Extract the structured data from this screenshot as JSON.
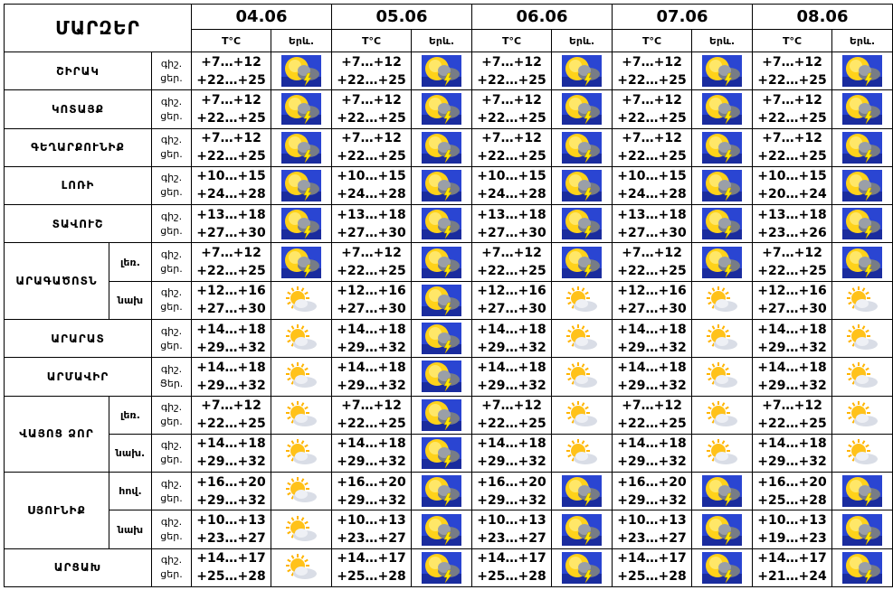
{
  "header": {
    "title": "ՄԱՐԶԵՐ",
    "temp_label": "T°C",
    "weather_label": "Երև."
  },
  "dates": [
    "04.06",
    "05.06",
    "06.06",
    "07.06",
    "08.06"
  ],
  "labels": {
    "night": "գիշ.",
    "day": "ցեր.",
    "day_alt": "Ցեր."
  },
  "regions": [
    {
      "name": "ՇԻՐԱԿ",
      "rows": [
        {
          "sub": "",
          "day_label": "ցեր.",
          "days": [
            {
              "night": "+7…+12",
              "day": "+22…+25",
              "icon": "thunderstorm-icon"
            },
            {
              "night": "+7…+12",
              "day": "+22…+25",
              "icon": "thunderstorm-icon"
            },
            {
              "night": "+7…+12",
              "day": "+22…+25",
              "icon": "thunderstorm-icon"
            },
            {
              "night": "+7…+12",
              "day": "+22…+25",
              "icon": "thunderstorm-icon"
            },
            {
              "night": "+7…+12",
              "day": "+22…+25",
              "icon": "thunderstorm-icon"
            }
          ]
        }
      ]
    },
    {
      "name": "ԿՈՏԱՅՔ",
      "rows": [
        {
          "sub": "",
          "day_label": "ցեր.",
          "days": [
            {
              "night": "+7…+12",
              "day": "+22…+25",
              "icon": "thunderstorm-icon"
            },
            {
              "night": "+7…+12",
              "day": "+22…+25",
              "icon": "thunderstorm-icon"
            },
            {
              "night": "+7…+12",
              "day": "+22…+25",
              "icon": "thunderstorm-icon"
            },
            {
              "night": "+7…+12",
              "day": "+22…+25",
              "icon": "thunderstorm-icon"
            },
            {
              "night": "+7…+12",
              "day": "+22…+25",
              "icon": "thunderstorm-icon"
            }
          ]
        }
      ]
    },
    {
      "name": "ԳԵՂԱՐՔՈՒՆԻՔ",
      "rows": [
        {
          "sub": "",
          "day_label": "ցեր.",
          "days": [
            {
              "night": "+7…+12",
              "day": "+22…+25",
              "icon": "thunderstorm-icon"
            },
            {
              "night": "+7…+12",
              "day": "+22…+25",
              "icon": "thunderstorm-icon"
            },
            {
              "night": "+7…+12",
              "day": "+22…+25",
              "icon": "thunderstorm-icon"
            },
            {
              "night": "+7…+12",
              "day": "+22…+25",
              "icon": "thunderstorm-icon"
            },
            {
              "night": "+7…+12",
              "day": "+22…+25",
              "icon": "thunderstorm-icon"
            }
          ]
        }
      ]
    },
    {
      "name": "ԼՈՌԻ",
      "rows": [
        {
          "sub": "",
          "day_label": "ցեր.",
          "days": [
            {
              "night": "+10…+15",
              "day": "+24…+28",
              "icon": "thunderstorm-icon"
            },
            {
              "night": "+10…+15",
              "day": "+24…+28",
              "icon": "thunderstorm-icon"
            },
            {
              "night": "+10…+15",
              "day": "+24…+28",
              "icon": "thunderstorm-icon"
            },
            {
              "night": "+10…+15",
              "day": "+24…+28",
              "icon": "thunderstorm-icon"
            },
            {
              "night": "+10…+15",
              "day": "+20…+24",
              "icon": "thunderstorm-icon"
            }
          ]
        }
      ]
    },
    {
      "name": "ՏԱՎՈՒՇ",
      "rows": [
        {
          "sub": "",
          "day_label": "ցեր.",
          "days": [
            {
              "night": "+13…+18",
              "day": "+27…+30",
              "icon": "thunderstorm-icon"
            },
            {
              "night": "+13…+18",
              "day": "+27…+30",
              "icon": "thunderstorm-icon"
            },
            {
              "night": "+13…+18",
              "day": "+27…+30",
              "icon": "thunderstorm-icon"
            },
            {
              "night": "+13…+18",
              "day": "+27…+30",
              "icon": "thunderstorm-icon"
            },
            {
              "night": "+13…+18",
              "day": "+23…+26",
              "icon": "thunderstorm-icon"
            }
          ]
        }
      ]
    },
    {
      "name": "ԱՐԱԳԱԾՈՏՆ",
      "rows": [
        {
          "sub": "լեռ.",
          "day_label": "ցեր.",
          "days": [
            {
              "night": "+7…+12",
              "day": "+22…+25",
              "icon": "thunderstorm-icon"
            },
            {
              "night": "+7…+12",
              "day": "+22…+25",
              "icon": "thunderstorm-icon"
            },
            {
              "night": "+7…+12",
              "day": "+22…+25",
              "icon": "thunderstorm-icon"
            },
            {
              "night": "+7…+12",
              "day": "+22…+25",
              "icon": "thunderstorm-icon"
            },
            {
              "night": "+7…+12",
              "day": "+22…+25",
              "icon": "thunderstorm-icon"
            }
          ]
        },
        {
          "sub": "նախ",
          "day_label": "ցեր.",
          "days": [
            {
              "night": "+12…+16",
              "day": "+27…+30",
              "icon": "partly-cloudy-icon"
            },
            {
              "night": "+12…+16",
              "day": "+27…+30",
              "icon": "thunderstorm-icon"
            },
            {
              "night": "+12…+16",
              "day": "+27…+30",
              "icon": "partly-cloudy-icon"
            },
            {
              "night": "+12…+16",
              "day": "+27…+30",
              "icon": "partly-cloudy-icon"
            },
            {
              "night": "+12…+16",
              "day": "+27…+30",
              "icon": "partly-cloudy-icon"
            }
          ]
        }
      ]
    },
    {
      "name": "ԱՐԱՐԱՏ",
      "rows": [
        {
          "sub": "",
          "day_label": "ցեր.",
          "days": [
            {
              "night": "+14…+18",
              "day": "+29…+32",
              "icon": "partly-cloudy-icon"
            },
            {
              "night": "+14…+18",
              "day": "+29…+32",
              "icon": "thunderstorm-icon"
            },
            {
              "night": "+14…+18",
              "day": "+29…+32",
              "icon": "partly-cloudy-icon"
            },
            {
              "night": "+14…+18",
              "day": "+29…+32",
              "icon": "partly-cloudy-icon"
            },
            {
              "night": "+14…+18",
              "day": "+29…+32",
              "icon": "partly-cloudy-icon"
            }
          ]
        }
      ]
    },
    {
      "name": "ԱՐՄԱՎԻՐ",
      "rows": [
        {
          "sub": "",
          "day_label": "Ցեր.",
          "days": [
            {
              "night": "+14…+18",
              "day": "+29…+32",
              "icon": "partly-cloudy-icon"
            },
            {
              "night": "+14…+18",
              "day": "+29…+32",
              "icon": "thunderstorm-icon"
            },
            {
              "night": "+14…+18",
              "day": "+29…+32",
              "icon": "partly-cloudy-icon"
            },
            {
              "night": "+14…+18",
              "day": "+29…+32",
              "icon": "partly-cloudy-icon"
            },
            {
              "night": "+14…+18",
              "day": "+29…+32",
              "icon": "partly-cloudy-icon"
            }
          ]
        }
      ]
    },
    {
      "name": "ՎԱՅՈՑ ՁՈՐ",
      "rows": [
        {
          "sub": "լեռ.",
          "day_label": "ցեր.",
          "days": [
            {
              "night": "+7…+12",
              "day": "+22…+25",
              "icon": "partly-cloudy-icon"
            },
            {
              "night": "+7…+12",
              "day": "+22…+25",
              "icon": "thunderstorm-icon"
            },
            {
              "night": "+7…+12",
              "day": "+22…+25",
              "icon": "partly-cloudy-icon"
            },
            {
              "night": "+7…+12",
              "day": "+22…+25",
              "icon": "partly-cloudy-icon"
            },
            {
              "night": "+7…+12",
              "day": "+22…+25",
              "icon": "partly-cloudy-icon"
            }
          ]
        },
        {
          "sub": "նախ.",
          "day_label": "ցեր.",
          "days": [
            {
              "night": "+14…+18",
              "day": "+29…+32",
              "icon": "partly-cloudy-icon"
            },
            {
              "night": "+14…+18",
              "day": "+29…+32",
              "icon": "thunderstorm-icon"
            },
            {
              "night": "+14…+18",
              "day": "+29…+32",
              "icon": "partly-cloudy-icon"
            },
            {
              "night": "+14…+18",
              "day": "+29…+32",
              "icon": "partly-cloudy-icon"
            },
            {
              "night": "+14…+18",
              "day": "+29…+32",
              "icon": "partly-cloudy-icon"
            }
          ]
        }
      ]
    },
    {
      "name": "ՍՅՈՒՆԻՔ",
      "rows": [
        {
          "sub": "հով.",
          "day_label": "ցեր.",
          "days": [
            {
              "night": "+16…+20",
              "day": "+29…+32",
              "icon": "partly-cloudy-icon"
            },
            {
              "night": "+16…+20",
              "day": "+29…+32",
              "icon": "thunderstorm-icon"
            },
            {
              "night": "+16…+20",
              "day": "+29…+32",
              "icon": "thunderstorm-icon"
            },
            {
              "night": "+16…+20",
              "day": "+29…+32",
              "icon": "thunderstorm-icon"
            },
            {
              "night": "+16…+20",
              "day": "+25…+28",
              "icon": "thunderstorm-icon"
            }
          ]
        },
        {
          "sub": "նախ",
          "day_label": "ցեր.",
          "days": [
            {
              "night": "+10…+13",
              "day": "+23…+27",
              "icon": "partly-cloudy-icon"
            },
            {
              "night": "+10…+13",
              "day": "+23…+27",
              "icon": "thunderstorm-icon"
            },
            {
              "night": "+10…+13",
              "day": "+23…+27",
              "icon": "thunderstorm-icon"
            },
            {
              "night": "+10…+13",
              "day": "+23…+27",
              "icon": "thunderstorm-icon"
            },
            {
              "night": "+10…+13",
              "day": "+19…+23",
              "icon": "thunderstorm-icon"
            }
          ]
        }
      ]
    },
    {
      "name": "ԱՐՑԱԽ",
      "rows": [
        {
          "sub": "",
          "day_label": "ցեր.",
          "days": [
            {
              "night": "+14…+17",
              "day": "+25…+28",
              "icon": "partly-cloudy-icon"
            },
            {
              "night": "+14…+17",
              "day": "+25…+28",
              "icon": "thunderstorm-icon"
            },
            {
              "night": "+14…+17",
              "day": "+25…+28",
              "icon": "thunderstorm-icon"
            },
            {
              "night": "+14…+17",
              "day": "+25…+28",
              "icon": "thunderstorm-icon"
            },
            {
              "night": "+14…+17",
              "day": "+21…+24",
              "icon": "thunderstorm-icon"
            }
          ]
        }
      ]
    }
  ]
}
